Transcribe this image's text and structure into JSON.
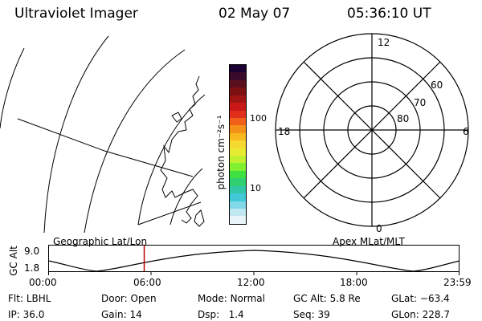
{
  "header": {
    "instrument": "Ultraviolet Imager",
    "date": "02 May 07",
    "time": "05:36:10 UT"
  },
  "colorbar": {
    "unit": "photon cm⁻²s⁻¹",
    "tick_high": "100",
    "tick_low": "10",
    "colors": [
      "#1a0033",
      "#3a0a2a",
      "#5a0f1f",
      "#7d1010",
      "#a01414",
      "#c81818",
      "#e0301a",
      "#f06018",
      "#f59018",
      "#f8b820",
      "#f5d830",
      "#e8ec30",
      "#c0f030",
      "#80f030",
      "#40e040",
      "#30d070",
      "#30c8a8",
      "#40c8d8",
      "#80d8e8",
      "#c0e8f0",
      "#e8f4f8"
    ]
  },
  "geo_map": {
    "label": "Geographic Lat/Lon"
  },
  "polar_plot": {
    "label": "Apex MLat/MLT",
    "mlt_labels": {
      "top": "12",
      "left": "18",
      "right": "6",
      "bottom": "0"
    },
    "lat_labels": [
      "60",
      "70",
      "80"
    ]
  },
  "altitude_plot": {
    "ylabel": "GC Alt",
    "yticks": [
      "9.0",
      "1.8"
    ],
    "xticks": [
      "00:00",
      "06:00",
      "12:00",
      "18:00",
      "23:59"
    ],
    "current_time_hours": 5.603
  },
  "info": {
    "flt_label": "Flt:",
    "flt_value": "LBHL",
    "ip_label": "IP:",
    "ip_value": "36.0",
    "door_label": "Door:",
    "door_value": "Open",
    "gain_label": "Gain:",
    "gain_value": "14",
    "mode_label": "Mode:",
    "mode_value": "Normal",
    "dsp_label": "Dsp:",
    "dsp_value": "1.4",
    "gcalt_label": "GC Alt:",
    "gcalt_value": "5.8 Re",
    "seq_label": "Seq:",
    "seq_value": "39",
    "glat_label": "GLat:",
    "glat_value": "−63.4",
    "glon_label": "GLon:",
    "glon_value": "228.7"
  }
}
